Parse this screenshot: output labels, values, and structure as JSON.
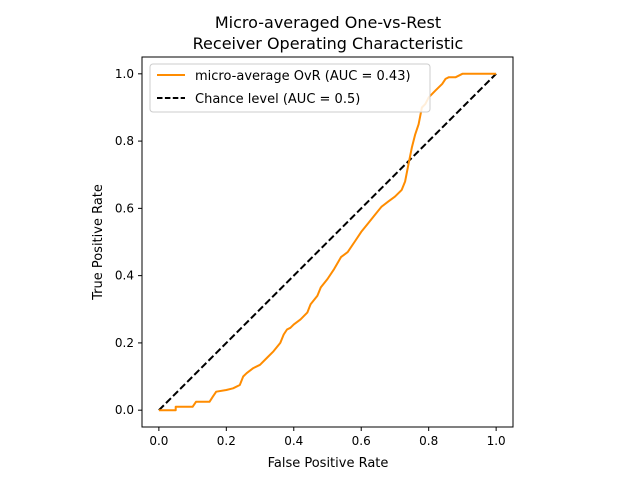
{
  "chart_data": {
    "type": "line",
    "title_lines": [
      "Micro-averaged One-vs-Rest",
      "Receiver Operating Characteristic"
    ],
    "xlabel": "False Positive Rate",
    "ylabel": "True Positive Rate",
    "xlim": [
      -0.05,
      1.05
    ],
    "ylim": [
      -0.05,
      1.05
    ],
    "xticks": [
      0.0,
      0.2,
      0.4,
      0.6,
      0.8,
      1.0
    ],
    "yticks": [
      0.0,
      0.2,
      0.4,
      0.6,
      0.8,
      1.0
    ],
    "tick_labels": [
      "0.0",
      "0.2",
      "0.4",
      "0.6",
      "0.8",
      "1.0"
    ],
    "grid": false,
    "legend_position": "upper left",
    "series": [
      {
        "name": "micro-average OvR (AUC = 0.43)",
        "color": "#ff8c00",
        "style": "solid",
        "x": [
          0.0,
          0.05,
          0.05,
          0.1,
          0.11,
          0.15,
          0.16,
          0.17,
          0.2,
          0.22,
          0.24,
          0.25,
          0.26,
          0.28,
          0.3,
          0.32,
          0.34,
          0.36,
          0.37,
          0.38,
          0.39,
          0.4,
          0.42,
          0.44,
          0.45,
          0.47,
          0.48,
          0.5,
          0.52,
          0.54,
          0.56,
          0.58,
          0.6,
          0.62,
          0.64,
          0.66,
          0.68,
          0.7,
          0.72,
          0.73,
          0.74,
          0.75,
          0.76,
          0.77,
          0.78,
          0.79,
          0.8,
          0.82,
          0.84,
          0.85,
          0.86,
          0.88,
          0.9,
          0.95,
          1.0
        ],
        "y": [
          0.0,
          0.0,
          0.01,
          0.01,
          0.025,
          0.025,
          0.04,
          0.055,
          0.06,
          0.065,
          0.075,
          0.1,
          0.11,
          0.125,
          0.135,
          0.155,
          0.175,
          0.2,
          0.225,
          0.24,
          0.245,
          0.255,
          0.27,
          0.29,
          0.315,
          0.34,
          0.365,
          0.39,
          0.42,
          0.455,
          0.47,
          0.5,
          0.53,
          0.555,
          0.58,
          0.605,
          0.62,
          0.635,
          0.655,
          0.68,
          0.73,
          0.78,
          0.82,
          0.85,
          0.9,
          0.91,
          0.93,
          0.95,
          0.97,
          0.985,
          0.99,
          0.99,
          1.0,
          1.0,
          1.0
        ]
      },
      {
        "name": "Chance level (AUC = 0.5)",
        "color": "#000000",
        "style": "dashed",
        "x": [
          0.0,
          1.0
        ],
        "y": [
          0.0,
          1.0
        ]
      }
    ]
  }
}
